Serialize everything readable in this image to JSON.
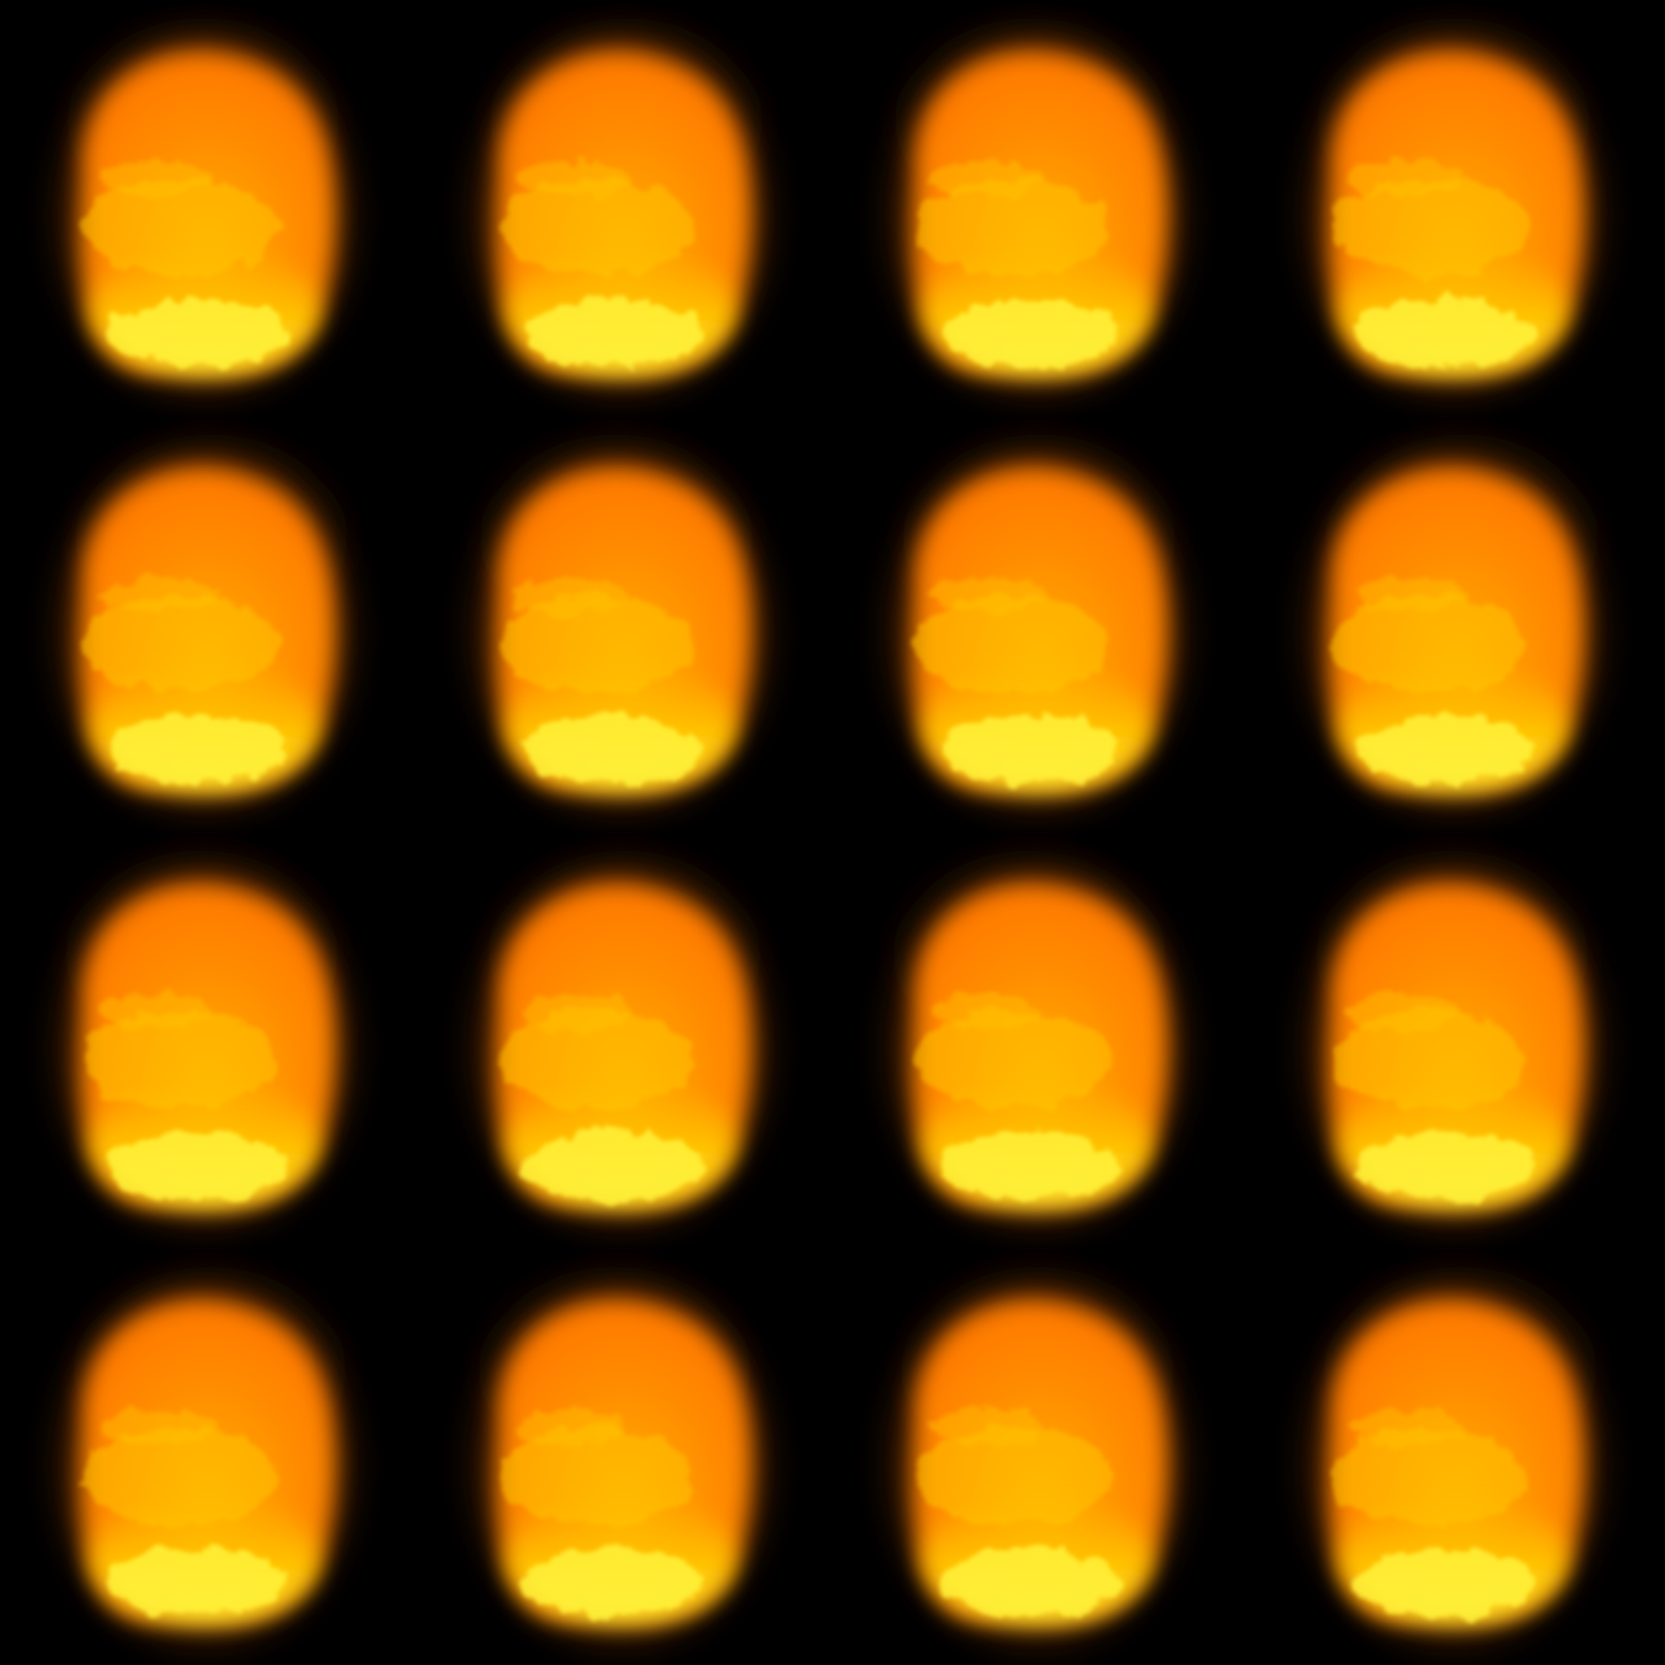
{
  "sprite_sheet": {
    "type": "flipbook-texture",
    "subject": "fireball",
    "grid": {
      "columns": 4,
      "rows": 4
    },
    "frame_count": 16,
    "background_color": "#000000",
    "palette": {
      "core": "#fff23a",
      "hot": "#ffc400",
      "body": "#ff8c00",
      "edge": "#8a3a00",
      "smoke": "#2a1200"
    }
  }
}
